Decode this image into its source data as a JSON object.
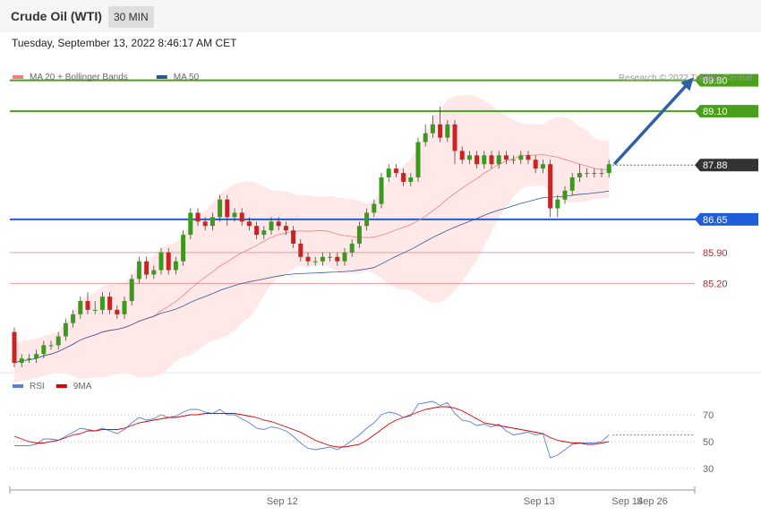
{
  "header": {
    "title": "Crude Oil (WTI)",
    "interval": "30 MIN",
    "datetime": "Tuesday, September 13, 2022 8:46:17 AM CET"
  },
  "legend_price": [
    {
      "label": "MA 20 + Bollinger Bands",
      "color": "#f08080"
    },
    {
      "label": "MA 50",
      "color": "#2f5597"
    }
  ],
  "legend_rsi": [
    {
      "label": "RSI",
      "color": "#5b7fd6"
    },
    {
      "label": "9MA",
      "color": "#dd0000"
    }
  ],
  "credit": "Research © 2022 Trading Central",
  "colors": {
    "up": "#3a9a1c",
    "down": "#cc2222",
    "resistance": "#4aa01a",
    "pivot": "#1f5ed8",
    "support": "#ee9999",
    "last": "#333333"
  },
  "chart_data": [
    {
      "type": "candlestick",
      "ylim": [
        83.3,
        90.4
      ],
      "x_ticks": [
        "Sep 12",
        "Sep 13",
        "Sep 14",
        "Sep 26"
      ],
      "levels": [
        {
          "value": 89.8,
          "label": "89.80",
          "kind": "resistance"
        },
        {
          "value": 89.1,
          "label": "89.10",
          "kind": "resistance"
        },
        {
          "value": 87.88,
          "label": "87.88",
          "kind": "last"
        },
        {
          "value": 86.65,
          "label": "86.65",
          "kind": "pivot"
        },
        {
          "value": 85.9,
          "label": "85.90",
          "kind": "support"
        },
        {
          "value": 85.2,
          "label": "85.20",
          "kind": "support"
        }
      ],
      "candles": [
        [
          84.1,
          83.4,
          84.2,
          83.3
        ],
        [
          83.4,
          83.5,
          83.6,
          83.3
        ],
        [
          83.5,
          83.5,
          83.6,
          83.4
        ],
        [
          83.5,
          83.6,
          83.7,
          83.4
        ],
        [
          83.6,
          83.8,
          83.9,
          83.5
        ],
        [
          83.8,
          83.8,
          83.9,
          83.7
        ],
        [
          83.8,
          84.0,
          84.1,
          83.7
        ],
        [
          84.0,
          84.3,
          84.4,
          83.9
        ],
        [
          84.3,
          84.5,
          84.6,
          84.2
        ],
        [
          84.5,
          84.8,
          84.9,
          84.4
        ],
        [
          84.8,
          84.6,
          85.0,
          84.5
        ],
        [
          84.6,
          84.6,
          84.8,
          84.5
        ],
        [
          84.6,
          84.9,
          85.0,
          84.5
        ],
        [
          84.9,
          84.6,
          85.0,
          84.5
        ],
        [
          84.6,
          84.5,
          84.7,
          84.4
        ],
        [
          84.5,
          84.8,
          84.9,
          84.4
        ],
        [
          84.8,
          85.3,
          85.4,
          84.7
        ],
        [
          85.3,
          85.7,
          85.8,
          85.2
        ],
        [
          85.7,
          85.4,
          85.8,
          85.3
        ],
        [
          85.4,
          85.5,
          85.6,
          85.3
        ],
        [
          85.5,
          85.9,
          86.0,
          85.4
        ],
        [
          85.9,
          85.5,
          86.0,
          85.4
        ],
        [
          85.5,
          85.7,
          85.8,
          85.4
        ],
        [
          85.7,
          86.3,
          86.4,
          85.6
        ],
        [
          86.3,
          86.8,
          86.9,
          86.2
        ],
        [
          86.8,
          86.6,
          86.9,
          86.5
        ],
        [
          86.6,
          86.5,
          86.7,
          86.4
        ],
        [
          86.5,
          86.7,
          86.8,
          86.4
        ],
        [
          86.7,
          87.1,
          87.2,
          86.6
        ],
        [
          87.1,
          86.7,
          87.2,
          86.5
        ],
        [
          86.7,
          86.8,
          86.9,
          86.6
        ],
        [
          86.8,
          86.6,
          86.9,
          86.5
        ],
        [
          86.6,
          86.5,
          86.7,
          86.4
        ],
        [
          86.5,
          86.3,
          86.6,
          86.2
        ],
        [
          86.3,
          86.4,
          86.5,
          86.2
        ],
        [
          86.4,
          86.6,
          86.7,
          86.3
        ],
        [
          86.6,
          86.5,
          86.7,
          86.4
        ],
        [
          86.5,
          86.4,
          86.6,
          86.3
        ],
        [
          86.4,
          86.1,
          86.5,
          86.0
        ],
        [
          86.1,
          85.8,
          86.2,
          85.7
        ],
        [
          85.8,
          85.7,
          85.9,
          85.6
        ],
        [
          85.7,
          85.7,
          85.8,
          85.6
        ],
        [
          85.7,
          85.8,
          85.9,
          85.6
        ],
        [
          85.8,
          85.8,
          85.9,
          85.7
        ],
        [
          85.8,
          85.7,
          85.9,
          85.6
        ],
        [
          85.7,
          85.9,
          86.0,
          85.6
        ],
        [
          85.9,
          86.1,
          86.2,
          85.8
        ],
        [
          86.1,
          86.5,
          86.6,
          86.0
        ],
        [
          86.5,
          86.8,
          86.9,
          86.4
        ],
        [
          86.8,
          87.0,
          87.1,
          86.7
        ],
        [
          87.0,
          87.6,
          87.7,
          86.9
        ],
        [
          87.6,
          87.8,
          87.9,
          87.5
        ],
        [
          87.8,
          87.7,
          87.9,
          87.6
        ],
        [
          87.7,
          87.5,
          87.8,
          87.4
        ],
        [
          87.5,
          87.6,
          87.7,
          87.4
        ],
        [
          87.6,
          88.4,
          88.5,
          87.5
        ],
        [
          88.4,
          88.6,
          88.8,
          88.3
        ],
        [
          88.6,
          88.8,
          89.0,
          88.5
        ],
        [
          88.8,
          88.5,
          89.2,
          88.4
        ],
        [
          88.5,
          88.8,
          88.9,
          88.4
        ],
        [
          88.8,
          88.2,
          88.9,
          87.9
        ],
        [
          88.2,
          88.0,
          88.3,
          87.9
        ],
        [
          88.0,
          88.1,
          88.2,
          87.9
        ],
        [
          88.1,
          87.9,
          88.2,
          87.8
        ],
        [
          87.9,
          88.1,
          88.2,
          87.8
        ],
        [
          88.1,
          87.9,
          88.2,
          87.8
        ],
        [
          87.9,
          88.1,
          88.2,
          87.8
        ],
        [
          88.1,
          88.0,
          88.2,
          87.9
        ],
        [
          88.0,
          88.0,
          88.1,
          87.9
        ],
        [
          88.0,
          88.1,
          88.2,
          87.9
        ],
        [
          88.1,
          88.0,
          88.2,
          87.9
        ],
        [
          88.0,
          87.8,
          88.1,
          87.7
        ],
        [
          87.8,
          87.9,
          88.0,
          87.7
        ],
        [
          87.9,
          86.9,
          88.0,
          86.7
        ],
        [
          86.9,
          87.1,
          87.2,
          86.7
        ],
        [
          87.1,
          87.3,
          87.4,
          87.0
        ],
        [
          87.3,
          87.6,
          87.7,
          87.2
        ],
        [
          87.6,
          87.7,
          87.9,
          87.5
        ],
        [
          87.7,
          87.7,
          87.8,
          87.6
        ],
        [
          87.7,
          87.7,
          87.8,
          87.6
        ],
        [
          87.7,
          87.7,
          87.8,
          87.6
        ],
        [
          87.7,
          87.9,
          88.0,
          87.6
        ]
      ],
      "projection": {
        "from": 87.9,
        "to": 89.8
      }
    },
    {
      "type": "line",
      "ylim": [
        20,
        80
      ],
      "y_ticks": [
        70,
        50,
        30
      ],
      "reference_value": 55,
      "series": [
        {
          "name": "RSI",
          "values": [
            47,
            47,
            47,
            48,
            52,
            52,
            51,
            54,
            57,
            60,
            59,
            58,
            60,
            58,
            56,
            59,
            64,
            68,
            66,
            67,
            70,
            68,
            69,
            72,
            74,
            74,
            72,
            71,
            74,
            70,
            70,
            67,
            64,
            60,
            59,
            61,
            60,
            58,
            54,
            49,
            45,
            44,
            45,
            46,
            44,
            47,
            51,
            55,
            60,
            64,
            70,
            72,
            71,
            68,
            69,
            78,
            79,
            80,
            77,
            79,
            71,
            66,
            65,
            62,
            63,
            61,
            63,
            58,
            55,
            56,
            57,
            55,
            56,
            38,
            40,
            44,
            48,
            49,
            49,
            49,
            50,
            55
          ]
        },
        {
          "name": "9MA",
          "values": [
            54,
            52,
            50,
            49,
            49,
            50,
            51,
            53,
            55,
            56,
            58,
            58,
            59,
            59,
            59,
            60,
            62,
            64,
            65,
            66,
            67,
            68,
            68,
            69,
            70,
            70,
            71,
            71,
            71,
            71,
            71,
            70,
            69,
            68,
            66,
            65,
            63,
            61,
            59,
            57,
            54,
            51,
            49,
            47,
            46,
            46,
            47,
            48,
            51,
            55,
            59,
            63,
            66,
            68,
            70,
            72,
            74,
            75,
            76,
            76,
            75,
            73,
            70,
            67,
            64,
            63,
            62,
            61,
            60,
            59,
            58,
            57,
            56,
            53,
            51,
            50,
            49,
            49,
            48,
            48,
            49,
            50
          ]
        }
      ]
    }
  ]
}
